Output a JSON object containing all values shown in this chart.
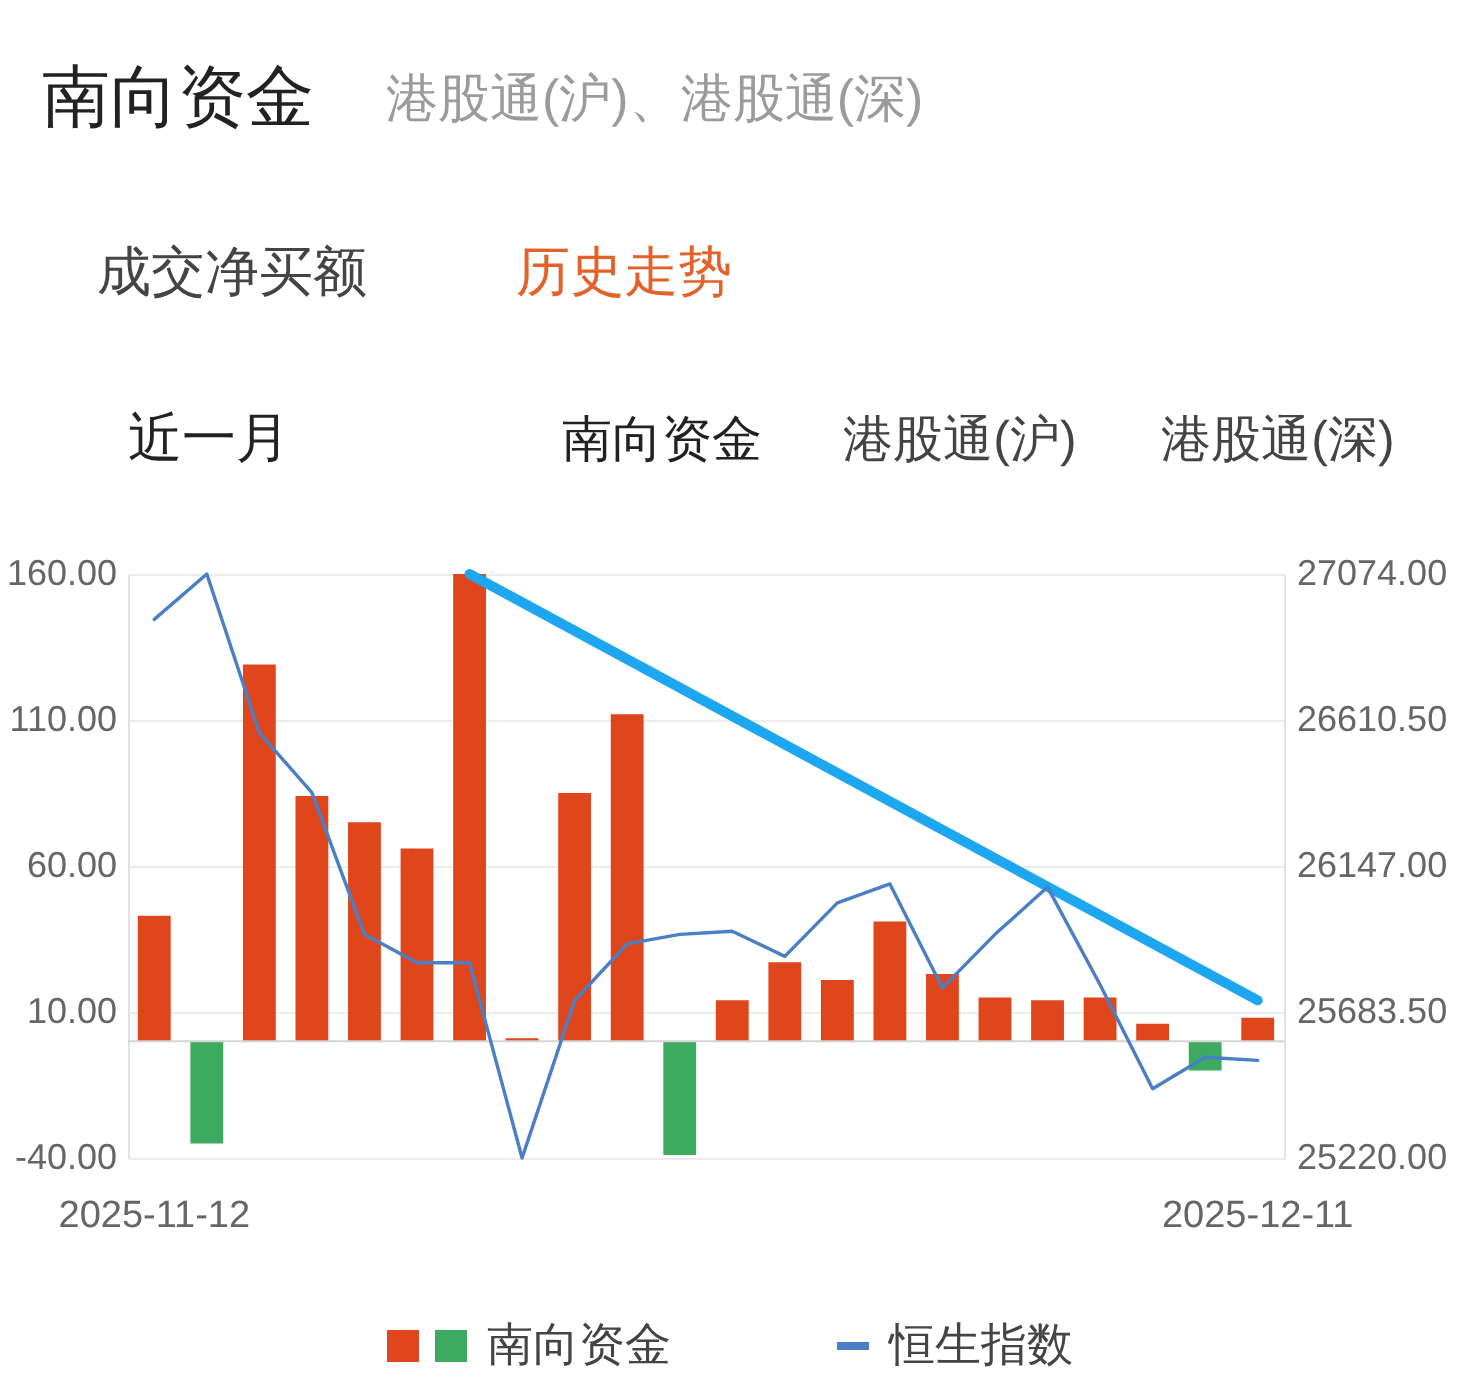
{
  "chart_data": {
    "type": "bar",
    "title": "南向资金",
    "subtitle": "港股通(沪)、港股通(深)",
    "annotations": [
      "成交净买额",
      "历史走势",
      "近一月",
      "南向资金",
      "港股通(沪)",
      "港股通(深)"
    ],
    "categories": [
      "2025-11-12",
      null,
      null,
      null,
      null,
      null,
      null,
      null,
      null,
      null,
      null,
      null,
      null,
      null,
      null,
      null,
      null,
      null,
      null,
      null,
      null,
      "2025-12-11"
    ],
    "series": [
      {
        "name": "南向资金",
        "values": [
          43,
          -35,
          129,
          84,
          75,
          66,
          160,
          1,
          85,
          112,
          -39,
          14,
          27,
          21,
          41,
          23,
          15,
          14,
          15,
          6,
          -10,
          8
        ],
        "colors": [
          "#e0461b",
          "#3dab5f",
          "#e0461b",
          "#e0461b",
          "#e0461b",
          "#e0461b",
          "#e0461b",
          "#e0461b",
          "#e0461b",
          "#e0461b",
          "#3dab5f",
          "#e0461b",
          "#e0461b",
          "#e0461b",
          "#e0461b",
          "#e0461b",
          "#e0461b",
          "#e0461b",
          "#e0461b",
          "#e0461b",
          "#3dab5f",
          "#e0461b"
        ]
      },
      {
        "name": "恒生指数",
        "type": "line",
        "axis": "y2",
        "color": "#4a7fc6",
        "values": [
          26930,
          27074,
          26570,
          26380,
          25930,
          25840,
          25840,
          25220,
          25720,
          25900,
          25930,
          25940,
          25860,
          26030,
          26090,
          25760,
          25930,
          26080,
          25770,
          25440,
          25540,
          25530
        ]
      },
      {
        "type": "line",
        "color": "#1ca7f0",
        "values": [
          null,
          null,
          null,
          null,
          null,
          null,
          160,
          null,
          null,
          null,
          null,
          null,
          null,
          null,
          null,
          null,
          null,
          null,
          null,
          null,
          null,
          14
        ]
      }
    ],
    "ylim": [
      -40,
      160
    ],
    "yticks": [
      {
        "value": -40,
        "label": "-40.00"
      },
      {
        "value": 10,
        "label": "10.00"
      },
      {
        "value": 60,
        "label": "60.00"
      },
      {
        "value": 110,
        "label": "110.00"
      },
      {
        "value": 160,
        "label": "160.00"
      }
    ],
    "y2lim": [
      25220,
      27074
    ],
    "y2ticks": [
      {
        "value": 25220,
        "label": "25220.00"
      },
      {
        "value": 25683.5,
        "label": "25683.50"
      },
      {
        "value": 26147,
        "label": "26147.00"
      },
      {
        "value": 26610.5,
        "label": "26610.50"
      },
      {
        "value": 27074,
        "label": "27074.00"
      }
    ],
    "ref_lines": [
      {
        "axis": "y",
        "value": 0,
        "color": "#d4d4d4"
      }
    ],
    "grid": "y",
    "legend": "bottom"
  }
}
